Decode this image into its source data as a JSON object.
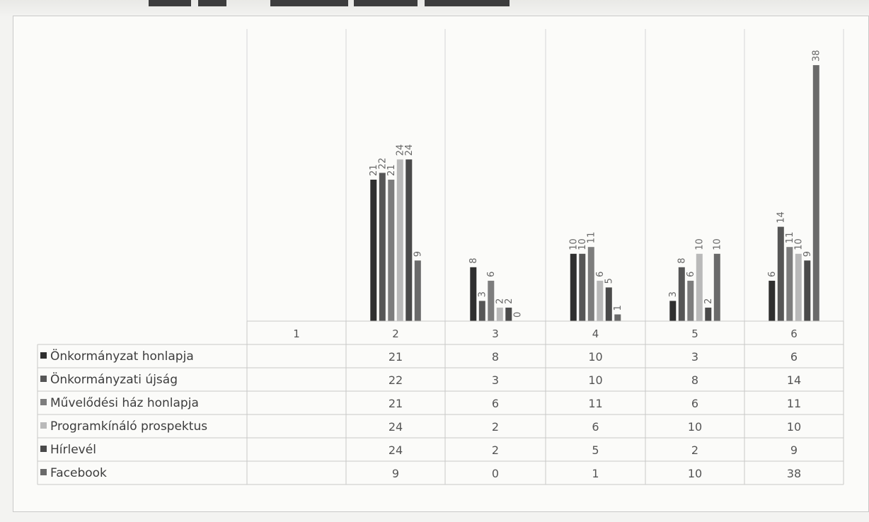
{
  "chart_data": {
    "type": "bar",
    "title": "",
    "xlabel": "",
    "ylabel": "",
    "categories": [
      "1",
      "2",
      "3",
      "4",
      "5",
      "6"
    ],
    "ylim": [
      0,
      40
    ],
    "grid": false,
    "legend_placement": "data-table",
    "series": [
      {
        "name": "Önkormányzat honlapja",
        "values": [
          null,
          21,
          8,
          10,
          3,
          6
        ],
        "color": "#2f2f2f"
      },
      {
        "name": "Önkormányzati újság",
        "values": [
          null,
          22,
          3,
          10,
          8,
          14
        ],
        "color": "#565656"
      },
      {
        "name": "Művelődési ház honlapja",
        "values": [
          null,
          21,
          6,
          11,
          6,
          11
        ],
        "color": "#7d7d7d"
      },
      {
        "name": "Programkínáló prospektus",
        "values": [
          null,
          24,
          2,
          6,
          10,
          10
        ],
        "color": "#b9b9b9"
      },
      {
        "name": "Hírlevél",
        "values": [
          null,
          24,
          2,
          5,
          2,
          9
        ],
        "color": "#4a4a4a"
      },
      {
        "name": "Facebook",
        "values": [
          null,
          9,
          0,
          1,
          10,
          38
        ],
        "color": "#6a6a6a"
      }
    ]
  }
}
